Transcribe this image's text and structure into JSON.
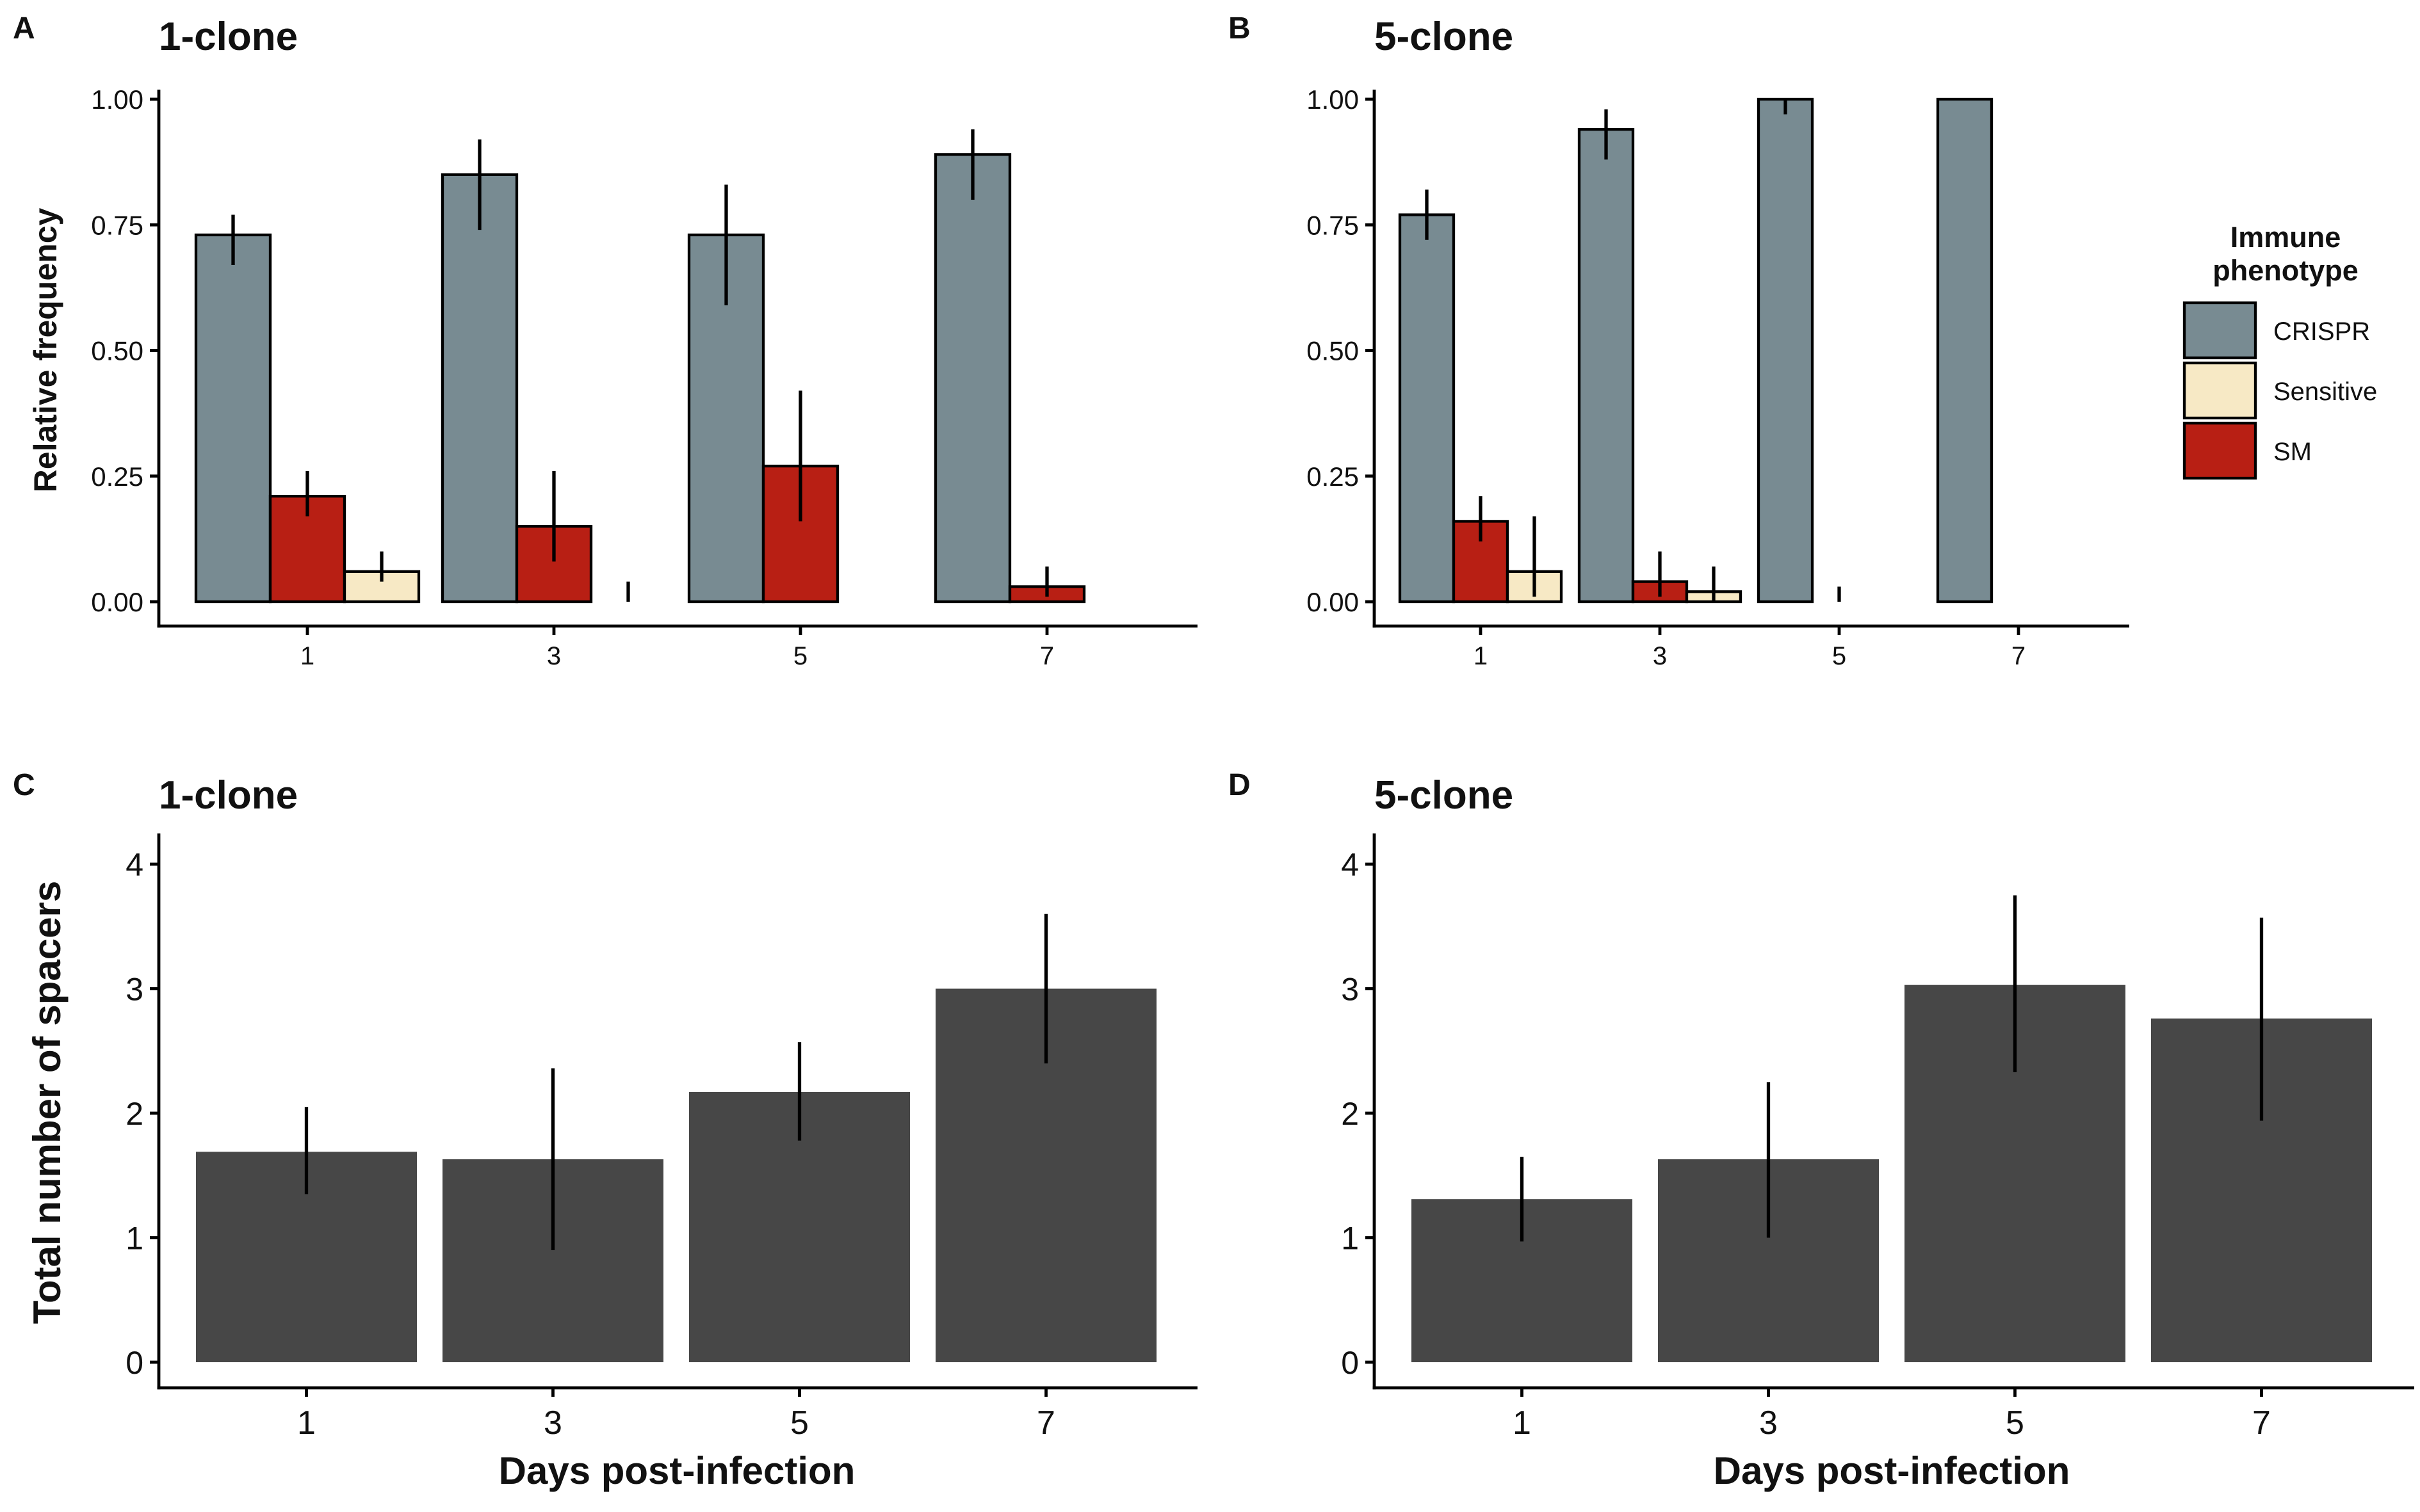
{
  "panels": {
    "A": {
      "letter": "A",
      "title": "1-clone"
    },
    "B": {
      "letter": "B",
      "title": "5-clone"
    },
    "C": {
      "letter": "C",
      "title": "1-clone"
    },
    "D": {
      "letter": "D",
      "title": "5-clone"
    }
  },
  "legend": {
    "title_line1": "Immune",
    "title_line2": "phenotype",
    "entries": [
      {
        "label": "CRISPR",
        "color": "#788b92"
      },
      {
        "label": "Sensitive",
        "color": "#f7e9c5"
      },
      {
        "label": "SM",
        "color": "#b81f14"
      }
    ]
  },
  "labels": {
    "ylabel_top": "Relative frequency",
    "ylabel_bottom": "Total number of spacers",
    "xlabel_C": "Days post-infection",
    "xlabel_D": "Days post-infection"
  },
  "chart_data": [
    {
      "panel": "A",
      "type": "bar",
      "title": "1-clone",
      "xlabel": "",
      "ylabel": "Relative frequency",
      "categories": [
        "1",
        "3",
        "5",
        "7"
      ],
      "ylim": [
        0,
        1
      ],
      "yticks": [
        "0.00",
        "0.25",
        "0.50",
        "0.75",
        "1.00"
      ],
      "series": [
        {
          "name": "CRISPR",
          "color": "#788b92",
          "values": [
            0.73,
            0.85,
            0.73,
            0.89
          ],
          "err_low": [
            0.67,
            0.74,
            0.59,
            0.8
          ],
          "err_high": [
            0.77,
            0.92,
            0.83,
            0.94
          ]
        },
        {
          "name": "SM",
          "color": "#b81f14",
          "values": [
            0.21,
            0.15,
            0.27,
            0.03
          ],
          "err_low": [
            0.17,
            0.08,
            0.16,
            0.01
          ],
          "err_high": [
            0.26,
            0.26,
            0.42,
            0.07
          ]
        },
        {
          "name": "Sensitive",
          "color": "#f7e9c5",
          "values": [
            0.06,
            0.0,
            0.0,
            0.0
          ],
          "err_low": [
            0.04,
            0.0,
            null,
            null
          ],
          "err_high": [
            0.1,
            0.04,
            null,
            null
          ]
        }
      ],
      "grid": false
    },
    {
      "panel": "B",
      "type": "bar",
      "title": "5-clone",
      "xlabel": "",
      "ylabel": "",
      "categories": [
        "1",
        "3",
        "5",
        "7"
      ],
      "ylim": [
        0,
        1
      ],
      "yticks": [
        "0.00",
        "0.25",
        "0.50",
        "0.75",
        "1.00"
      ],
      "series": [
        {
          "name": "CRISPR",
          "color": "#788b92",
          "values": [
            0.77,
            0.94,
            1.0,
            1.0
          ],
          "err_low": [
            0.72,
            0.88,
            0.97,
            null
          ],
          "err_high": [
            0.82,
            0.98,
            1.0,
            null
          ]
        },
        {
          "name": "SM",
          "color": "#b81f14",
          "values": [
            0.16,
            0.04,
            0.0,
            0.0
          ],
          "err_low": [
            0.12,
            0.01,
            null,
            null
          ],
          "err_high": [
            0.21,
            0.1,
            0.03,
            null
          ]
        },
        {
          "name": "Sensitive",
          "color": "#f7e9c5",
          "values": [
            0.06,
            0.02,
            0.0,
            0.0
          ],
          "err_low": [
            0.01,
            0.0,
            null,
            null
          ],
          "err_high": [
            0.17,
            0.07,
            null,
            null
          ]
        }
      ],
      "legend_position": "right",
      "grid": false
    },
    {
      "panel": "C",
      "type": "bar",
      "title": "1-clone",
      "xlabel": "Days post-infection",
      "ylabel": "Total number of spacers",
      "categories": [
        "1",
        "3",
        "5",
        "7"
      ],
      "ylim": [
        0,
        4.2
      ],
      "yticks": [
        "0",
        "1",
        "2",
        "3",
        "4"
      ],
      "color": "#474747",
      "values": [
        1.69,
        1.63,
        2.17,
        3.0
      ],
      "err_low": [
        1.35,
        0.9,
        1.78,
        2.4
      ],
      "err_high": [
        2.05,
        2.36,
        2.57,
        3.6
      ],
      "grid": false
    },
    {
      "panel": "D",
      "type": "bar",
      "title": "5-clone",
      "xlabel": "Days post-infection",
      "ylabel": "",
      "categories": [
        "1",
        "3",
        "5",
        "7"
      ],
      "ylim": [
        0,
        4.2
      ],
      "yticks": [
        "0",
        "1",
        "2",
        "3",
        "4"
      ],
      "color": "#474747",
      "values": [
        1.31,
        1.63,
        3.03,
        2.76
      ],
      "err_low": [
        0.97,
        1.0,
        2.33,
        1.94
      ],
      "err_high": [
        1.65,
        2.25,
        3.75,
        3.57
      ],
      "grid": false
    }
  ]
}
